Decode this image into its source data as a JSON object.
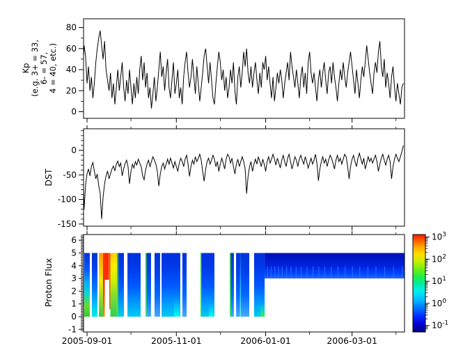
{
  "x_axis": {
    "tick_labels": [
      "2005-09-01",
      "2005-11-01",
      "2006-01-01",
      "2006-03-01"
    ],
    "major_tick_days": [
      3,
      64,
      125,
      184
    ],
    "minor_tick_days": [
      33,
      94,
      155,
      214
    ],
    "start_date": "2005-08-29",
    "span_days": 219.6
  },
  "chart_data": [
    {
      "type": "line",
      "name": "kp",
      "ylabel_lines": [
        "Kp",
        "(e.g. 3+ = 33,",
        "6- = 57,",
        "4 = 40, etc.)"
      ],
      "ytick_values": [
        0,
        20,
        40,
        60,
        80
      ],
      "ytick_labels": [
        "0",
        "20",
        "40",
        "60",
        "80"
      ],
      "yminor_step": 10,
      "ylim": [
        -6.3,
        88.5
      ],
      "x_start_day": 0,
      "x_step_days": 1,
      "line_color": "#000000",
      "values": [
        37,
        63,
        53,
        27,
        43,
        20,
        33,
        13,
        27,
        47,
        60,
        70,
        77,
        63,
        50,
        67,
        40,
        30,
        20,
        37,
        13,
        27,
        7,
        23,
        40,
        20,
        33,
        47,
        23,
        10,
        30,
        17,
        40,
        23,
        7,
        27,
        13,
        33,
        17,
        40,
        53,
        30,
        47,
        23,
        37,
        13,
        23,
        3,
        17,
        33,
        10,
        23,
        40,
        57,
        33,
        43,
        20,
        37,
        50,
        23,
        13,
        30,
        47,
        17,
        27,
        40,
        13,
        23,
        7,
        33,
        47,
        57,
        37,
        23,
        33,
        50,
        33,
        17,
        43,
        27,
        10,
        23,
        37,
        53,
        60,
        43,
        27,
        47,
        30,
        13,
        7,
        27,
        43,
        57,
        47,
        30,
        40,
        20,
        33,
        13,
        23,
        40,
        27,
        47,
        20,
        7,
        33,
        43,
        23,
        37,
        57,
        43,
        60,
        37,
        27,
        43,
        23,
        37,
        47,
        30,
        17,
        37,
        23,
        47,
        40,
        53,
        30,
        43,
        27,
        13,
        33,
        10,
        23,
        37,
        27,
        40,
        30,
        13,
        27,
        37,
        47,
        30,
        57,
        43,
        33,
        23,
        40,
        27,
        13,
        33,
        43,
        23,
        37,
        17,
        47,
        57,
        37,
        27,
        37,
        23,
        10,
        30,
        40,
        23,
        37,
        47,
        30,
        17,
        37,
        43,
        27,
        47,
        33,
        23,
        10,
        27,
        40,
        30,
        47,
        33,
        23,
        37,
        47,
        57,
        43,
        30,
        17,
        40,
        27,
        13,
        30,
        43,
        33,
        47,
        63,
        50,
        37,
        27,
        17,
        37,
        47,
        37,
        57,
        67,
        43,
        33,
        50,
        23,
        37,
        27,
        13,
        33,
        43,
        23,
        10,
        27,
        17,
        7,
        23,
        27
      ]
    },
    {
      "type": "line",
      "name": "dst",
      "ylabel": "DST",
      "ytick_values": [
        0,
        -50,
        -100,
        -150
      ],
      "ytick_labels": [
        "0",
        "-50",
        "-100",
        "-150"
      ],
      "yminor_step": 10,
      "ylim": [
        -154.5,
        43.9
      ],
      "x_start_day": 0,
      "x_step_days": 1,
      "line_color": "#000000",
      "values": [
        -15,
        -120,
        -70,
        -48,
        -38,
        -52,
        -33,
        -25,
        -42,
        -58,
        -48,
        -72,
        -88,
        -140,
        -95,
        -68,
        -52,
        -42,
        -58,
        -48,
        -38,
        -32,
        -42,
        -28,
        -22,
        -33,
        -26,
        -52,
        -38,
        -27,
        -20,
        -33,
        -68,
        -43,
        -28,
        -36,
        -23,
        -30,
        -18,
        -26,
        -33,
        -52,
        -60,
        -40,
        -28,
        -20,
        -33,
        -23,
        -13,
        -20,
        -28,
        -43,
        -73,
        -48,
        -33,
        -26,
        -38,
        -28,
        -18,
        -28,
        -16,
        -26,
        -36,
        -23,
        -33,
        -43,
        -26,
        -16,
        -23,
        -33,
        -18,
        -10,
        -28,
        -53,
        -33,
        -20,
        -28,
        -13,
        -23,
        -16,
        -8,
        -20,
        -43,
        -63,
        -38,
        -23,
        -16,
        -28,
        -20,
        -10,
        -18,
        -33,
        -23,
        -43,
        -28,
        -16,
        -26,
        -38,
        -18,
        -8,
        -13,
        -26,
        -16,
        -33,
        -48,
        -28,
        -18,
        -33,
        -23,
        -13,
        -23,
        -38,
        -88,
        -53,
        -33,
        -23,
        -43,
        -28,
        -18,
        -28,
        -13,
        -23,
        -33,
        -18,
        -28,
        -43,
        -23,
        -13,
        -26,
        -18,
        -8,
        -18,
        -30,
        -16,
        -26,
        -36,
        -20,
        -10,
        -23,
        -33,
        -16,
        -8,
        -23,
        -38,
        -26,
        -13,
        -20,
        -33,
        -18,
        -10,
        -20,
        -28,
        -13,
        -23,
        -36,
        -26,
        -16,
        -28,
        -20,
        -8,
        -26,
        -62,
        -38,
        -23,
        -13,
        -26,
        -18,
        -33,
        -20,
        -10,
        -16,
        -26,
        -38,
        -20,
        -10,
        -23,
        -16,
        -28,
        -18,
        -8,
        -13,
        -33,
        -58,
        -33,
        -18,
        -10,
        -23,
        -33,
        -16,
        -6,
        -18,
        -28,
        -16,
        -38,
        -26,
        -13,
        -23,
        -16,
        -26,
        -18,
        -10,
        -23,
        -43,
        -28,
        -16,
        -8,
        -20,
        -30,
        -18,
        -10,
        -23,
        -58,
        -33,
        -18,
        -8,
        -16,
        -23,
        -13,
        -3,
        10
      ]
    },
    {
      "type": "heatmap",
      "name": "proton",
      "ylabel": "Proton Flux",
      "ytick_values": [
        -1,
        0,
        1,
        2,
        3,
        4,
        5,
        6
      ],
      "ytick_labels": [
        "-1",
        "0",
        "1",
        "2",
        "3",
        "4",
        "5",
        "6"
      ],
      "yminor_step": 0.1,
      "ylim": [
        -1.2,
        6.45
      ],
      "value_scale": "log10 proton flux, jet colormap, 10^-1 to 10^3",
      "segments": [
        {
          "d0": 1.1,
          "d1": 4.9,
          "g": "greencol"
        },
        {
          "d0": 6.3,
          "d1": 10.1,
          "g": "cyanbot"
        },
        {
          "d0": 11.1,
          "d1": 13.9,
          "g": "rampL"
        },
        {
          "d0": 13.9,
          "d1": 15.1,
          "g": "core"
        },
        {
          "d0": 15.1,
          "d1": 18.0,
          "g": "coretop",
          "y0": 2.9,
          "y1": 5
        },
        {
          "d0": 18.2,
          "d1": 18.9,
          "g": "redline",
          "y0": 0.6,
          "y1": 5
        },
        {
          "d0": 18.9,
          "d1": 23.4,
          "g": "rampR"
        },
        {
          "d0": 23.4,
          "d1": 24.4,
          "g": "greenline"
        },
        {
          "d0": 24.4,
          "d1": 28.2,
          "g": "blue1"
        },
        {
          "d0": 30.6,
          "d1": 39.6,
          "g": "blue1"
        },
        {
          "d0": 42.9,
          "d1": 43.7,
          "g": "greenline"
        },
        {
          "d0": 43.7,
          "d1": 46.7,
          "g": "blue2"
        },
        {
          "d0": 49.1,
          "d1": 52.9,
          "g": "blue2"
        },
        {
          "d0": 53.9,
          "d1": 66.7,
          "g": "blue1"
        },
        {
          "d0": 68.1,
          "d1": 71.0,
          "g": "blue2"
        },
        {
          "d0": 80.5,
          "d1": 81.2,
          "g": "greenline"
        },
        {
          "d0": 81.2,
          "d1": 90.0,
          "g": "blue1"
        },
        {
          "d0": 100.5,
          "d1": 101.2,
          "g": "greenline"
        },
        {
          "d0": 101.2,
          "d1": 103.3,
          "g": "blue2"
        },
        {
          "d0": 104.8,
          "d1": 113.8,
          "g": "blue2"
        },
        {
          "d0": 117.1,
          "d1": 124.3,
          "g": "blue1"
        },
        {
          "d0": 124.3,
          "d1": 219.6,
          "g": "band",
          "y0": 3.0,
          "y1": 5
        }
      ],
      "blobs": [
        {
          "d0": 62.4,
          "d1": 66.3,
          "y0": 0,
          "y1": 1.6,
          "g": "cyanblob"
        },
        {
          "d0": 86.2,
          "d1": 89.5,
          "y0": 0,
          "y1": 1.3,
          "g": "cyanblob"
        },
        {
          "d0": 107.4,
          "d1": 108.1,
          "y0": 0,
          "y1": 5,
          "g": "cyanline"
        },
        {
          "d0": 121.4,
          "d1": 124.2,
          "y0": 0,
          "y1": 1.1,
          "g": "greenblob"
        }
      ],
      "band_streak_days": [
        126,
        128.5,
        131,
        133.5,
        136,
        139,
        142,
        145.5,
        149,
        153,
        157,
        161,
        165,
        169.5,
        174,
        179,
        184,
        189,
        194.5,
        200,
        206,
        212,
        218
      ],
      "gradients": {
        "greencol": [
          [
            0,
            "#33cc33"
          ],
          [
            0.18,
            "#66dd33"
          ],
          [
            0.35,
            "#00ddcc"
          ],
          [
            0.55,
            "#00aaff"
          ],
          [
            0.75,
            "#0055ff"
          ],
          [
            1,
            "#0033dd"
          ]
        ],
        "cyanbot": [
          [
            0,
            "#00eedd"
          ],
          [
            0.2,
            "#00bbff"
          ],
          [
            0.45,
            "#0077ff"
          ],
          [
            0.75,
            "#0040ee"
          ],
          [
            1,
            "#0033cc"
          ]
        ],
        "blue1": [
          [
            0,
            "#00ccee"
          ],
          [
            0.22,
            "#0099ff"
          ],
          [
            0.5,
            "#0055ff"
          ],
          [
            0.8,
            "#0038e8"
          ],
          [
            1,
            "#0030dd"
          ]
        ],
        "blue2": [
          [
            0,
            "#44aaff"
          ],
          [
            0.35,
            "#0066ff"
          ],
          [
            0.7,
            "#0040ee"
          ],
          [
            1,
            "#0033d8"
          ]
        ],
        "rampL": [
          [
            0,
            "#33cc44"
          ],
          [
            0.3,
            "#99dd22"
          ],
          [
            0.55,
            "#eeee00"
          ],
          [
            0.8,
            "#ffbb00"
          ],
          [
            1,
            "#ff9900"
          ]
        ],
        "core": [
          [
            0,
            "#ff8800"
          ],
          [
            0.25,
            "#ff5500"
          ],
          [
            0.55,
            "#ff2200"
          ],
          [
            1,
            "#ff3300"
          ]
        ],
        "coretop": [
          [
            0,
            "#ff3300"
          ],
          [
            1,
            "#ff2200"
          ]
        ],
        "redline": [
          [
            0,
            "#ff6600"
          ],
          [
            1,
            "#ff2200"
          ]
        ],
        "rampR": [
          [
            0,
            "#33cc55"
          ],
          [
            0.3,
            "#77dd33"
          ],
          [
            0.55,
            "#ccee00"
          ],
          [
            0.8,
            "#ffee00"
          ],
          [
            1,
            "#ffcc00"
          ]
        ],
        "greenline": [
          [
            0,
            "#33ee44"
          ],
          [
            1,
            "#22cc33"
          ]
        ],
        "band": [
          [
            0,
            "#2266ff"
          ],
          [
            0.2,
            "#0044ff"
          ],
          [
            0.5,
            "#0022dd"
          ],
          [
            1,
            "#000fb8"
          ]
        ],
        "cyanblob": [
          [
            0,
            "#00ffee",
            0.95
          ],
          [
            0.6,
            "#00ccff",
            0.5
          ],
          [
            1,
            "#00aaff",
            0
          ]
        ],
        "greenblob": [
          [
            0,
            "#44ee33",
            0.95
          ],
          [
            0.6,
            "#00eeaa",
            0.5
          ],
          [
            1,
            "#00ccff",
            0
          ]
        ],
        "cyanline": [
          [
            0,
            "#66ffcc",
            0.9
          ],
          [
            0.5,
            "#33ddff",
            0.7
          ],
          [
            1,
            "#2299ff",
            0.25
          ]
        ]
      },
      "colorbar": {
        "tick_base": "10",
        "tick_exponents": [
          3,
          2,
          1,
          0,
          -1
        ],
        "tick_labels": [
          "10³",
          "10²",
          "10¹",
          "10⁰",
          "10⁻¹"
        ],
        "stops": [
          [
            0.0,
            "#000088"
          ],
          [
            0.08,
            "#0000cc"
          ],
          [
            0.15,
            "#0022ff"
          ],
          [
            0.25,
            "#0077ff"
          ],
          [
            0.33,
            "#00bbff"
          ],
          [
            0.42,
            "#00eeee"
          ],
          [
            0.5,
            "#00ee99"
          ],
          [
            0.57,
            "#22ee44"
          ],
          [
            0.65,
            "#77ee11"
          ],
          [
            0.73,
            "#ccee00"
          ],
          [
            0.8,
            "#ffdd00"
          ],
          [
            0.87,
            "#ffaa00"
          ],
          [
            0.93,
            "#ff6600"
          ],
          [
            1.0,
            "#ff1500"
          ]
        ]
      }
    }
  ]
}
